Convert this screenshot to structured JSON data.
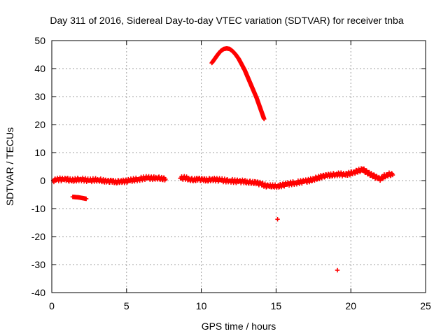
{
  "chart_data": {
    "type": "scatter",
    "title": "Day 311 of 2016, Sidereal Day-to-day VTEC variation (SDTVAR) for receiver tnba",
    "xlabel": "GPS time / hours",
    "ylabel": "SDTVAR / TECUs",
    "xlim": [
      0,
      25
    ],
    "ylim": [
      -40,
      50
    ],
    "xticks": [
      0,
      5,
      10,
      15,
      20,
      25
    ],
    "yticks": [
      -40,
      -30,
      -20,
      -10,
      0,
      10,
      20,
      30,
      40,
      50
    ],
    "grid": true,
    "legend": "none",
    "marker": "plus",
    "series": [
      {
        "name": "baseline",
        "color": "#ff0000",
        "points": [
          [
            0.1,
            0.0
          ],
          [
            0.3,
            0.2
          ],
          [
            0.5,
            0.5
          ],
          [
            0.8,
            0.3
          ],
          [
            1.0,
            0.5
          ],
          [
            1.3,
            0.0
          ],
          [
            1.6,
            0.3
          ],
          [
            1.9,
            0.5
          ],
          [
            2.2,
            0.3
          ],
          [
            2.5,
            0.0
          ],
          [
            2.8,
            0.2
          ],
          [
            3.1,
            0.3
          ],
          [
            3.4,
            0.0
          ],
          [
            3.7,
            -0.3
          ],
          [
            4.0,
            -0.2
          ],
          [
            4.3,
            -0.5
          ],
          [
            4.6,
            -0.2
          ],
          [
            4.9,
            -0.3
          ],
          [
            5.2,
            0.0
          ],
          [
            5.5,
            0.3
          ],
          [
            5.8,
            0.5
          ],
          [
            6.1,
            0.8
          ],
          [
            6.4,
            1.0
          ],
          [
            6.7,
            0.8
          ],
          [
            7.0,
            1.0
          ],
          [
            7.3,
            0.8
          ],
          [
            7.6,
            0.5
          ],
          [
            8.6,
            0.8
          ],
          [
            8.9,
            1.0
          ],
          [
            9.2,
            0.5
          ],
          [
            9.5,
            0.3
          ],
          [
            9.8,
            0.5
          ],
          [
            10.1,
            0.3
          ],
          [
            10.4,
            0.2
          ],
          [
            10.7,
            0.5
          ],
          [
            11.0,
            0.3
          ],
          [
            11.3,
            0.2
          ],
          [
            11.6,
            0.0
          ],
          [
            11.9,
            0.0
          ],
          [
            12.2,
            -0.2
          ],
          [
            12.5,
            -0.3
          ],
          [
            12.8,
            -0.3
          ],
          [
            13.1,
            -0.5
          ],
          [
            13.4,
            -0.6
          ],
          [
            13.7,
            -0.8
          ],
          [
            14.0,
            -1.2
          ],
          [
            14.3,
            -1.8
          ],
          [
            14.5,
            -2.0
          ],
          [
            15.1,
            -2.0
          ],
          [
            15.4,
            -1.7
          ],
          [
            15.7,
            -1.3
          ],
          [
            16.0,
            -1.0
          ],
          [
            16.3,
            -0.8
          ],
          [
            16.6,
            -0.5
          ],
          [
            16.9,
            -0.3
          ],
          [
            17.2,
            0.0
          ],
          [
            17.5,
            0.5
          ],
          [
            17.8,
            1.0
          ],
          [
            18.1,
            1.5
          ],
          [
            18.4,
            1.8
          ],
          [
            18.7,
            2.0
          ],
          [
            19.0,
            2.2
          ],
          [
            19.3,
            2.3
          ],
          [
            19.6,
            2.0
          ],
          [
            19.9,
            2.5
          ],
          [
            20.2,
            3.0
          ],
          [
            20.5,
            3.5
          ],
          [
            20.8,
            4.0
          ],
          [
            21.0,
            3.2
          ],
          [
            21.2,
            2.6
          ],
          [
            21.4,
            2.0
          ],
          [
            21.6,
            1.4
          ],
          [
            21.8,
            0.8
          ],
          [
            22.0,
            0.5
          ],
          [
            22.2,
            1.5
          ],
          [
            22.4,
            2.0
          ],
          [
            22.6,
            2.3
          ],
          [
            22.8,
            2.0
          ]
        ]
      },
      {
        "name": "arc",
        "color": "#ff0000",
        "points": [
          [
            10.7,
            42.0
          ],
          [
            10.9,
            43.5
          ],
          [
            11.1,
            45.0
          ],
          [
            11.3,
            46.3
          ],
          [
            11.5,
            47.0
          ],
          [
            11.7,
            47.2
          ],
          [
            11.9,
            47.0
          ],
          [
            12.1,
            46.2
          ],
          [
            12.3,
            45.0
          ],
          [
            12.5,
            43.5
          ],
          [
            12.7,
            41.5
          ],
          [
            12.9,
            39.5
          ],
          [
            13.1,
            37.0
          ],
          [
            13.3,
            34.5
          ],
          [
            13.5,
            32.0
          ],
          [
            13.7,
            29.5
          ],
          [
            13.9,
            26.5
          ],
          [
            14.0,
            25.0
          ],
          [
            14.1,
            23.5
          ],
          [
            14.2,
            22.0
          ]
        ]
      },
      {
        "name": "offset segment",
        "color": "#ff0000",
        "points": [
          [
            1.4,
            -5.8
          ],
          [
            1.6,
            -5.9
          ],
          [
            1.8,
            -6.0
          ],
          [
            2.0,
            -6.2
          ],
          [
            2.2,
            -6.4
          ],
          [
            2.3,
            -6.5
          ]
        ]
      },
      {
        "name": "outliers",
        "color": "#ff0000",
        "points": [
          [
            15.1,
            -13.8
          ],
          [
            19.1,
            -32.0
          ]
        ]
      }
    ]
  }
}
